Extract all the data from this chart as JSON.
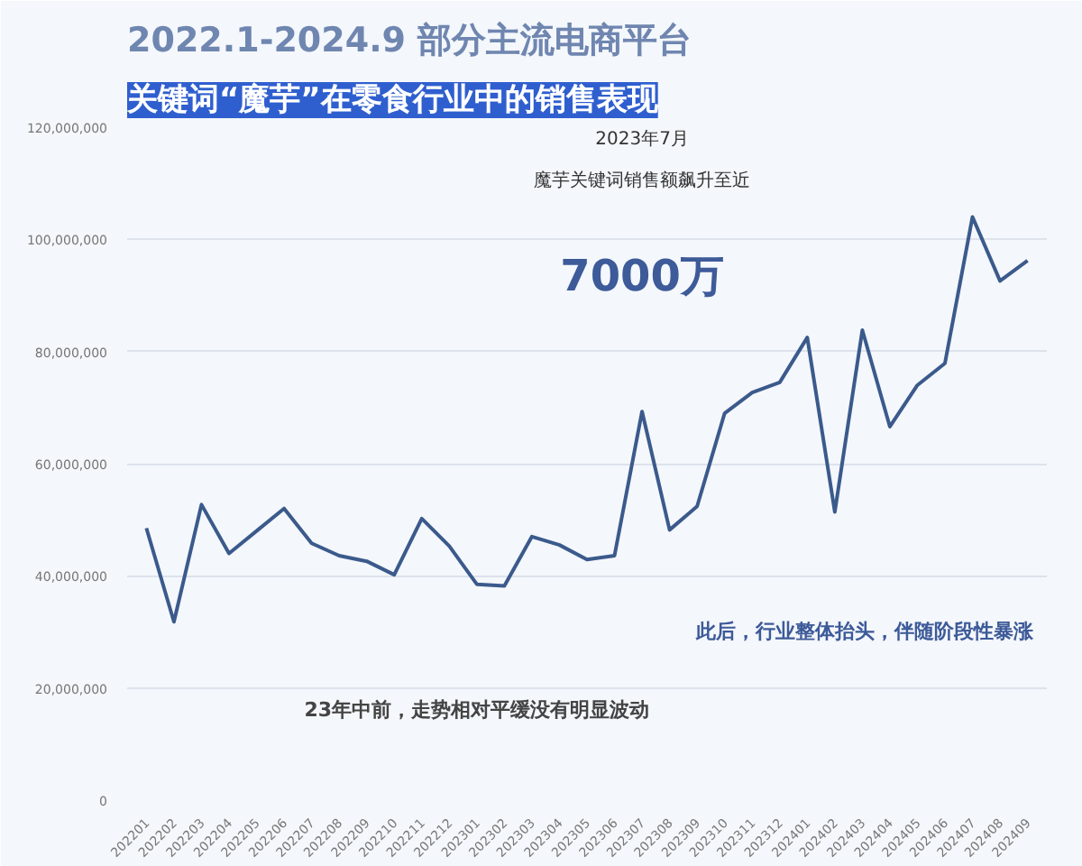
{
  "chart_data": {
    "type": "line",
    "title": "2022.1-2024.9 部分主流电商平台",
    "subtitle": "关键词“魔芋”在零食行业中的销售表现",
    "categories": [
      "202201",
      "202202",
      "202203",
      "202204",
      "202205",
      "202206",
      "202207",
      "202208",
      "202209",
      "202210",
      "202211",
      "202212",
      "202301",
      "202302",
      "202303",
      "202304",
      "202305",
      "202306",
      "202307",
      "202308",
      "202309",
      "202310",
      "202311",
      "202312",
      "202401",
      "202402",
      "202403",
      "202404",
      "202405",
      "202406",
      "202407",
      "202408",
      "202409"
    ],
    "series": [
      {
        "color": "#3b5a8c",
        "values": [
          48500000,
          31800000,
          52700000,
          44000000,
          48000000,
          52000000,
          45800000,
          43600000,
          42600000,
          40200000,
          50200000,
          45300000,
          38500000,
          38200000,
          47000000,
          45500000,
          42900000,
          43600000,
          69300000,
          48200000,
          52400000,
          69000000,
          72700000,
          74500000,
          82500000,
          51400000,
          83800000,
          66600000,
          74000000,
          77900000,
          104000000,
          92600000,
          96200000
        ]
      }
    ],
    "ylim": [
      0,
      120000000
    ],
    "yticks": [
      {
        "value": 0,
        "label": "0"
      },
      {
        "value": 20000000,
        "label": "20,000,000"
      },
      {
        "value": 40000000,
        "label": "40,000,000"
      },
      {
        "value": 60000000,
        "label": "60,000,000"
      },
      {
        "value": 80000000,
        "label": "80,000,000"
      },
      {
        "value": 100000000,
        "label": "100,000,000"
      },
      {
        "value": 120000000,
        "label": "120,000,000"
      }
    ],
    "grid": "y",
    "marker": "none",
    "line_style": "solid",
    "annotations": [
      "2023年7月",
      "魔芋关键词销售额飙升至近",
      "7000万",
      "23年中前，走势相对平缓没有明显波动",
      "此后，行业整体抬头，伴随阶段性暴涨"
    ]
  }
}
